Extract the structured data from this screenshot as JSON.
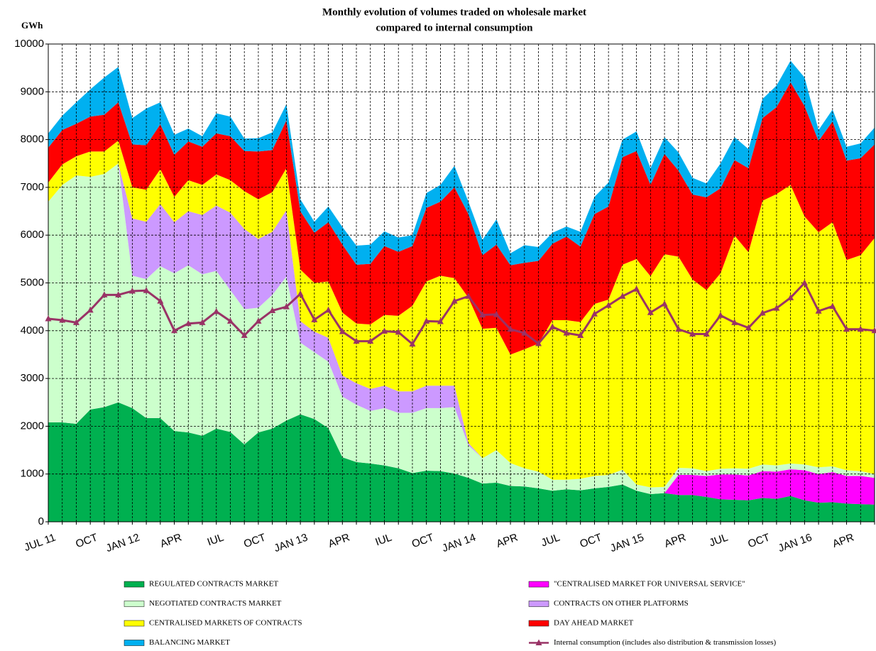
{
  "chart_data": {
    "type": "stacked_area",
    "title": [
      "Monthly evolution of volumes traded on wholesale market",
      "compared to internal consumption"
    ],
    "y_label": "GWh",
    "categories": [
      "JUL 11",
      null,
      null,
      "OCT",
      null,
      null,
      "JAN 12",
      null,
      null,
      "APR",
      null,
      null,
      "IUL",
      null,
      null,
      "OCT",
      null,
      null,
      "JAN 13",
      null,
      null,
      "APR",
      null,
      null,
      "IUL",
      null,
      null,
      "OCT",
      null,
      null,
      "JAN 14",
      null,
      null,
      "APR",
      null,
      null,
      "JUL",
      null,
      null,
      "OCT",
      null,
      null,
      "JAN 15",
      null,
      null,
      "APR",
      null,
      null,
      "JUL",
      null,
      null,
      "OCT",
      null,
      null,
      "JAN 16",
      null,
      null,
      "APR",
      null,
      null
    ],
    "ylim": [
      0,
      10000
    ],
    "yticks": [
      0,
      1000,
      2000,
      3000,
      4000,
      5000,
      6000,
      7000,
      8000,
      9000,
      10000
    ],
    "grid": true,
    "series": [
      {
        "name": "REGULATED CONTRACTS MARKET",
        "color": "#00b050",
        "values": [
          2080,
          2080,
          2050,
          2350,
          2400,
          2500,
          2380,
          2170,
          2170,
          1900,
          1870,
          1800,
          1950,
          1880,
          1620,
          1870,
          1950,
          2120,
          2250,
          2150,
          1960,
          1350,
          1250,
          1220,
          1180,
          1120,
          1020,
          1070,
          1060,
          1010,
          920,
          800,
          820,
          750,
          740,
          700,
          650,
          680,
          660,
          700,
          730,
          780,
          650,
          580,
          600,
          560,
          560,
          520,
          470,
          460,
          450,
          500,
          480,
          540,
          450,
          400,
          410,
          380,
          370,
          360
        ]
      },
      {
        "name": "\"CENTRALISED MARKET FOR UNIVERSAL SERVICE\"",
        "color": "#ff00ff",
        "values": [
          0,
          0,
          0,
          0,
          0,
          0,
          0,
          0,
          0,
          0,
          0,
          0,
          0,
          0,
          0,
          0,
          0,
          0,
          0,
          0,
          0,
          0,
          0,
          0,
          0,
          0,
          0,
          0,
          0,
          0,
          0,
          0,
          0,
          0,
          0,
          0,
          0,
          0,
          0,
          0,
          0,
          0,
          0,
          0,
          0,
          420,
          420,
          440,
          520,
          530,
          520,
          560,
          570,
          560,
          630,
          600,
          630,
          580,
          590,
          560
        ]
      },
      {
        "name": "NEGOTIATED CONTRACTS MARKET",
        "color": "#ccffcc",
        "values": [
          4620,
          4970,
          5200,
          4870,
          4880,
          5000,
          2770,
          2910,
          3180,
          3300,
          3500,
          3380,
          3300,
          2970,
          2830,
          2610,
          2800,
          3010,
          1500,
          1400,
          1390,
          1270,
          1200,
          1100,
          1200,
          1160,
          1260,
          1310,
          1320,
          1390,
          680,
          530,
          680,
          480,
          380,
          350,
          230,
          200,
          240,
          260,
          250,
          310,
          130,
          140,
          130,
          150,
          140,
          100,
          120,
          130,
          140,
          140,
          130,
          120,
          120,
          140,
          120,
          120,
          100,
          80
        ]
      },
      {
        "name": "CONTRACTS ON OTHER PLATFORMS",
        "color": "#cc99ff",
        "values": [
          0,
          0,
          0,
          0,
          0,
          0,
          1200,
          1200,
          1300,
          1070,
          1130,
          1240,
          1370,
          1620,
          1680,
          1440,
          1320,
          1390,
          450,
          430,
          500,
          440,
          450,
          460,
          470,
          450,
          450,
          470,
          470,
          450,
          50,
          0,
          0,
          0,
          0,
          0,
          0,
          0,
          0,
          0,
          0,
          0,
          0,
          0,
          0,
          0,
          0,
          0,
          0,
          0,
          0,
          0,
          0,
          0,
          0,
          0,
          0,
          0,
          0,
          0
        ]
      },
      {
        "name": "CENTRALISED MARKETS OF CONTRACTS",
        "color": "#ffff00",
        "values": [
          400,
          430,
          400,
          530,
          470,
          480,
          650,
          670,
          730,
          530,
          650,
          630,
          650,
          680,
          790,
          830,
          830,
          880,
          1080,
          1020,
          1180,
          1320,
          1250,
          1350,
          1480,
          1580,
          1790,
          2180,
          2300,
          2250,
          3040,
          2710,
          2560,
          2270,
          2490,
          2680,
          3340,
          3340,
          3280,
          3600,
          3670,
          4290,
          4720,
          4420,
          4870,
          4420,
          3950,
          3790,
          4090,
          4870,
          4530,
          5520,
          5680,
          5830,
          5190,
          4920,
          5110,
          4400,
          4520,
          4940
        ]
      },
      {
        "name": "DAY AHEAD MARKET",
        "color": "#ff0000",
        "values": [
          730,
          720,
          680,
          730,
          770,
          800,
          900,
          930,
          940,
          880,
          810,
          800,
          860,
          920,
          840,
          1000,
          880,
          1000,
          1220,
          1050,
          1240,
          1420,
          1230,
          1270,
          1440,
          1340,
          1250,
          1540,
          1550,
          1900,
          1750,
          1540,
          1740,
          1870,
          1810,
          1730,
          1600,
          1750,
          1580,
          1880,
          1950,
          2250,
          2260,
          1910,
          2100,
          1800,
          1780,
          1940,
          1780,
          1580,
          1760,
          1730,
          1820,
          2150,
          2310,
          1910,
          2110,
          2080,
          2030,
          1960
        ]
      },
      {
        "name": "BALANCING MARKET",
        "color": "#00b0f0",
        "values": [
          300,
          300,
          450,
          570,
          780,
          740,
          550,
          770,
          460,
          420,
          270,
          220,
          420,
          410,
          260,
          280,
          370,
          340,
          250,
          230,
          330,
          370,
          400,
          400,
          310,
          300,
          230,
          310,
          350,
          450,
          260,
          320,
          530,
          250,
          370,
          290,
          230,
          210,
          310,
          360,
          500,
          370,
          410,
          350,
          350,
          380,
          350,
          290,
          520,
          480,
          400,
          400,
          450,
          450,
          600,
          230,
          250,
          290,
          310,
          350
        ]
      }
    ],
    "line_series": {
      "name": "Internal consumption (includes also distribution & transmission losses)",
      "color": "#993366",
      "values": [
        4250,
        4220,
        4170,
        4430,
        4750,
        4750,
        4830,
        4840,
        4620,
        4000,
        4150,
        4170,
        4400,
        4200,
        3900,
        4200,
        4420,
        4500,
        4770,
        4230,
        4430,
        3980,
        3780,
        3780,
        3990,
        3970,
        3720,
        4200,
        4190,
        4620,
        4720,
        4330,
        4340,
        4030,
        3950,
        3730,
        4080,
        3950,
        3900,
        4350,
        4530,
        4720,
        4870,
        4380,
        4560,
        4030,
        3930,
        3930,
        4320,
        4170,
        4060,
        4370,
        4470,
        4690,
        5000,
        4410,
        4510,
        4030,
        4030,
        4000
      ]
    }
  }
}
